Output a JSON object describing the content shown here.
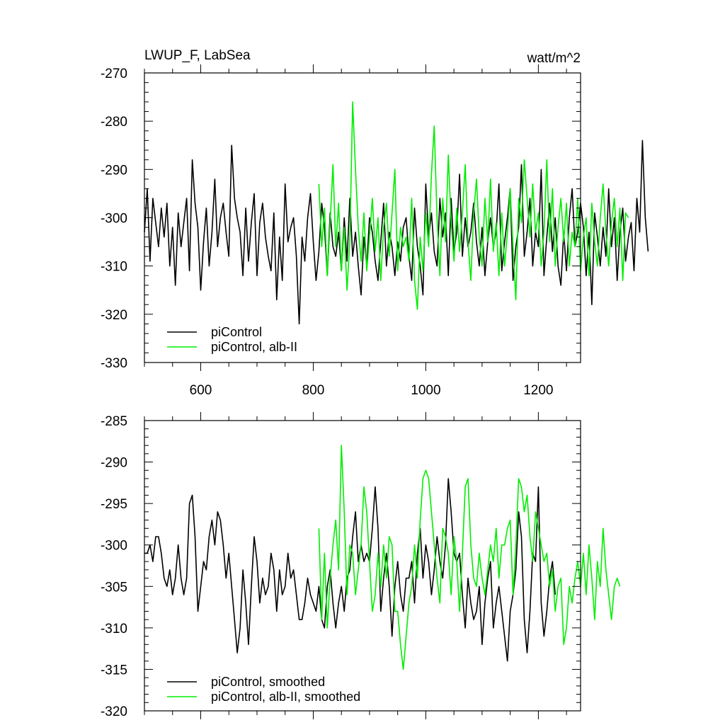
{
  "figure": {
    "left_string": "LWUP_F, LabSea",
    "right_string": "watt/m^2"
  },
  "colors": {
    "picontrol": "#000000",
    "alb_ii": "#00ee00",
    "axes": "#000000",
    "background": "#ffffff"
  },
  "chart_data": [
    {
      "type": "line",
      "id": "top",
      "title": "",
      "xlabel": "",
      "ylabel": "",
      "xlim": [
        500,
        1275
      ],
      "ylim": [
        -330,
        -270
      ],
      "x_ticks": [
        600,
        800,
        1000,
        1200
      ],
      "x_tick_labels": [
        "600",
        "800",
        "1000",
        "1200"
      ],
      "y_ticks": [
        -330,
        -320,
        -310,
        -300,
        -290,
        -280,
        -270
      ],
      "y_tick_labels": [
        "-330",
        "-320",
        "-310",
        "-300",
        "-290",
        "-280",
        "-270"
      ],
      "grid": false,
      "legend_position": "bottom-left",
      "series": [
        {
          "name": "piControl",
          "color": "#000000",
          "x_start": 500,
          "x_step": 5,
          "values": [
            -303,
            -294,
            -309,
            -296,
            -301,
            -306,
            -298,
            -304,
            -297,
            -310,
            -302,
            -314,
            -299,
            -306,
            -301,
            -296,
            -311,
            -288,
            -297,
            -302,
            -315,
            -305,
            -298,
            -310,
            -303,
            -292,
            -306,
            -300,
            -297,
            -303,
            -308,
            -285,
            -296,
            -300,
            -303,
            -312,
            -298,
            -309,
            -301,
            -295,
            -312,
            -301,
            -297,
            -304,
            -308,
            -311,
            -299,
            -317,
            -304,
            -313,
            -293,
            -305,
            -302,
            -300,
            -308,
            -322,
            -304,
            -309,
            -300,
            -295,
            -305,
            -313,
            -307,
            -297,
            -302,
            -312,
            -299,
            -306,
            -308,
            -303,
            -311,
            -300,
            -309,
            -296,
            -308,
            -303,
            -310,
            -316,
            -304,
            -310,
            -300,
            -303,
            -309,
            -313,
            -305,
            -297,
            -310,
            -303,
            -306,
            -312,
            -305,
            -309,
            -302,
            -300,
            -308,
            -313,
            -298,
            -306,
            -310,
            -316,
            -293,
            -304,
            -299,
            -307,
            -310,
            -296,
            -304,
            -299,
            -312,
            -296,
            -307,
            -303,
            -291,
            -308,
            -300,
            -306,
            -303,
            -297,
            -305,
            -310,
            -302,
            -312,
            -305,
            -300,
            -306,
            -303,
            -293,
            -311,
            -305,
            -300,
            -294,
            -313,
            -306,
            -302,
            -289,
            -308,
            -303,
            -296,
            -310,
            -303,
            -306,
            -290,
            -312,
            -304,
            -297,
            -307,
            -300,
            -310,
            -314,
            -303,
            -311,
            -300,
            -294,
            -306,
            -303,
            -297,
            -302,
            -312,
            -303,
            -318,
            -299,
            -304,
            -310,
            -302,
            -308,
            -294,
            -306,
            -300,
            -313,
            -303,
            -298,
            -309,
            -304,
            -301,
            -311,
            -296,
            -303,
            -284,
            -300,
            -307
          ]
        },
        {
          "name": "piControl, alb-II",
          "color": "#00ee00",
          "x_start": 810,
          "x_step": 5,
          "values": [
            -293,
            -306,
            -298,
            -312,
            -301,
            -289,
            -306,
            -297,
            -311,
            -302,
            -315,
            -305,
            -276,
            -290,
            -302,
            -309,
            -299,
            -311,
            -304,
            -296,
            -307,
            -300,
            -313,
            -302,
            -297,
            -308,
            -299,
            -290,
            -311,
            -302,
            -306,
            -304,
            -309,
            -296,
            -313,
            -319,
            -304,
            -311,
            -299,
            -306,
            -291,
            -281,
            -300,
            -312,
            -296,
            -305,
            -287,
            -301,
            -309,
            -298,
            -307,
            -299,
            -289,
            -305,
            -313,
            -299,
            -292,
            -304,
            -310,
            -296,
            -305,
            -292,
            -307,
            -301,
            -312,
            -299,
            -310,
            -303,
            -294,
            -306,
            -317,
            -296,
            -301,
            -288,
            -296,
            -304,
            -293,
            -303,
            -299,
            -310,
            -303,
            -288,
            -305,
            -294,
            -310,
            -302,
            -296,
            -305,
            -297,
            -310,
            -303,
            -306,
            -296,
            -311,
            -304,
            -300,
            -312,
            -297,
            -305,
            -310,
            -300,
            -293,
            -303,
            -310,
            -301,
            -296,
            -306,
            -298,
            -313,
            -299,
            -300
          ]
        }
      ]
    },
    {
      "type": "line",
      "id": "bottom",
      "title": "",
      "xlabel": "",
      "ylabel": "",
      "xlim": [
        500,
        1275
      ],
      "ylim": [
        -320,
        -285
      ],
      "x_ticks": [
        600,
        800,
        1000,
        1200
      ],
      "y_ticks": [
        -320,
        -315,
        -310,
        -305,
        -300,
        -295,
        -290,
        -285
      ],
      "y_tick_labels": [
        "-320",
        "-315",
        "-310",
        "-305",
        "-300",
        "-295",
        "-290",
        "-285"
      ],
      "grid": false,
      "legend_position": "bottom-left",
      "series": [
        {
          "name": "piControl, smoothed",
          "color": "#000000",
          "x_start": 500,
          "x_step": 5,
          "values": [
            -301,
            -301,
            -300,
            -302,
            -299,
            -299,
            -301,
            -304,
            -305,
            -303,
            -306,
            -304,
            -300,
            -304,
            -306,
            -304,
            -295,
            -294,
            -299,
            -308,
            -305,
            -302,
            -303,
            -299,
            -297,
            -300,
            -296,
            -297,
            -300,
            -304,
            -301,
            -305,
            -309,
            -313,
            -310,
            -303,
            -307,
            -312,
            -305,
            -299,
            -302,
            -307,
            -304,
            -306,
            -305,
            -301,
            -303,
            -308,
            -303,
            -306,
            -305,
            -301,
            -304,
            -303,
            -306,
            -309,
            -309,
            -307,
            -304,
            -306,
            -307,
            -308,
            -305,
            -309,
            -310,
            -305,
            -303,
            -307,
            -310,
            -307,
            -305,
            -308,
            -304,
            -303,
            -299,
            -296,
            -302,
            -300,
            -302,
            -301,
            -302,
            -298,
            -293,
            -298,
            -308,
            -304,
            -301,
            -305,
            -311,
            -305,
            -302,
            -306,
            -308,
            -304,
            -304,
            -302,
            -307,
            -301,
            -298,
            -304,
            -300,
            -302,
            -306,
            -303,
            -299,
            -302,
            -304,
            -300,
            -292,
            -296,
            -301,
            -302,
            -301,
            -306,
            -310,
            -304,
            -307,
            -309,
            -308,
            -305,
            -312,
            -307,
            -304,
            -302,
            -310,
            -307,
            -305,
            -308,
            -311,
            -314,
            -308,
            -306,
            -303,
            -296,
            -299,
            -309,
            -313,
            -308,
            -301,
            -302,
            -293,
            -307,
            -311,
            -308,
            -304,
            -302,
            -306
          ]
        },
        {
          "name": "piControl, alb-II, smoothed",
          "color": "#00ee00",
          "x_start": 810,
          "x_step": 5,
          "values": [
            -298,
            -309,
            -301,
            -310,
            -304,
            -300,
            -297,
            -303,
            -288,
            -296,
            -306,
            -300,
            -301,
            -306,
            -303,
            -300,
            -293,
            -296,
            -302,
            -308,
            -306,
            -301,
            -305,
            -300,
            -304,
            -299,
            -300,
            -308,
            -308,
            -312,
            -315,
            -311,
            -307,
            -305,
            -300,
            -304,
            -297,
            -292,
            -291,
            -292,
            -296,
            -300,
            -304,
            -307,
            -298,
            -299,
            -301,
            -306,
            -299,
            -302,
            -308,
            -301,
            -293,
            -292,
            -300,
            -304,
            -305,
            -301,
            -304,
            -306,
            -303,
            -300,
            -302,
            -298,
            -304,
            -300,
            -300,
            -298,
            -297,
            -306,
            -300,
            -292,
            -293,
            -296,
            -294,
            -299,
            -302,
            -296,
            -298,
            -300,
            -302,
            -301,
            -305,
            -303,
            -308,
            -305,
            -304,
            -312,
            -310,
            -305,
            -307,
            -304,
            -302,
            -305,
            -301,
            -306,
            -300,
            -304,
            -309,
            -302,
            -305,
            -298,
            -303,
            -306,
            -309,
            -305,
            -304,
            -305
          ]
        }
      ]
    }
  ]
}
